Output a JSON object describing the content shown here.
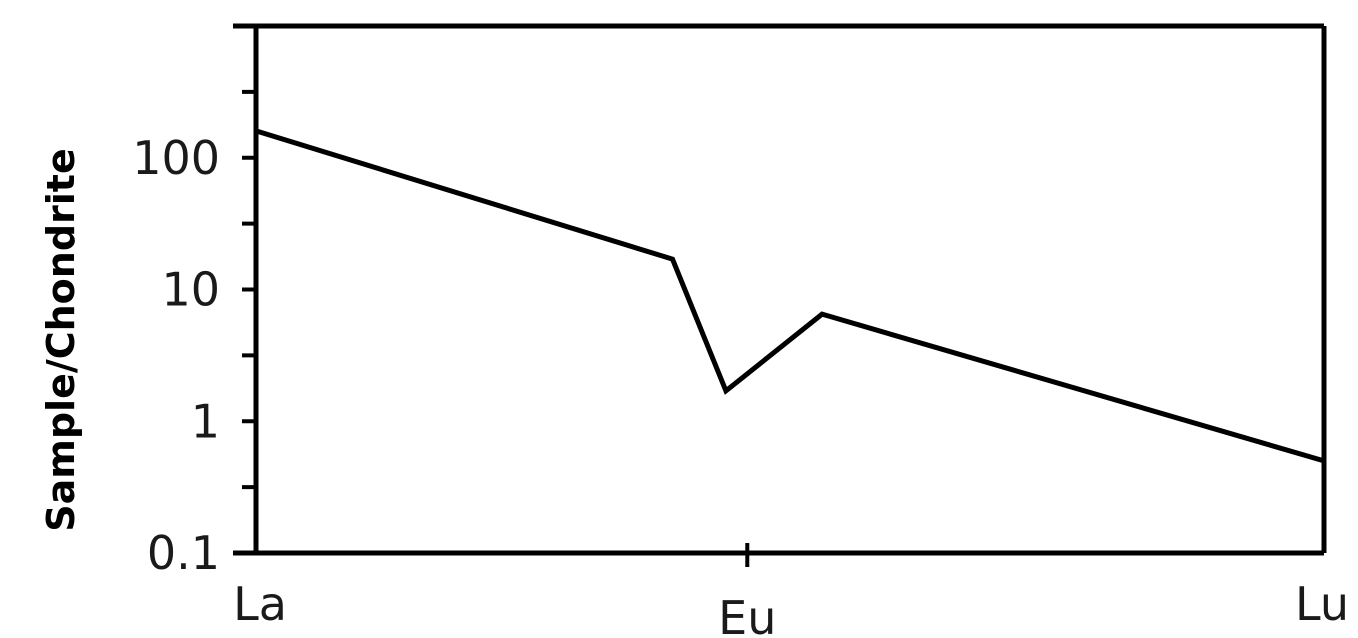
{
  "chart_data": {
    "type": "line",
    "title": "",
    "xlabel": "",
    "ylabel": "Sample/Chondrite",
    "y_scale": "log",
    "ylim": [
      0.1,
      1000
    ],
    "y_ticks": [
      0.1,
      1,
      10,
      100
    ],
    "y_tick_labels": [
      "0.1",
      "1",
      "10",
      "100"
    ],
    "x_tick_labels": [
      "La",
      "Eu",
      "Lu"
    ],
    "grid": false,
    "series": [
      {
        "points": [
          {
            "x": 0,
            "y": 160
          },
          {
            "x": 7.8,
            "y": 17
          },
          {
            "x": 8.8,
            "y": 1.7
          },
          {
            "x": 10.6,
            "y": 6.5
          },
          {
            "x": 20,
            "y": 0.5
          }
        ]
      }
    ],
    "x_ticks_positions": [
      0,
      9.2,
      20
    ],
    "xlim": [
      0,
      20
    ]
  }
}
